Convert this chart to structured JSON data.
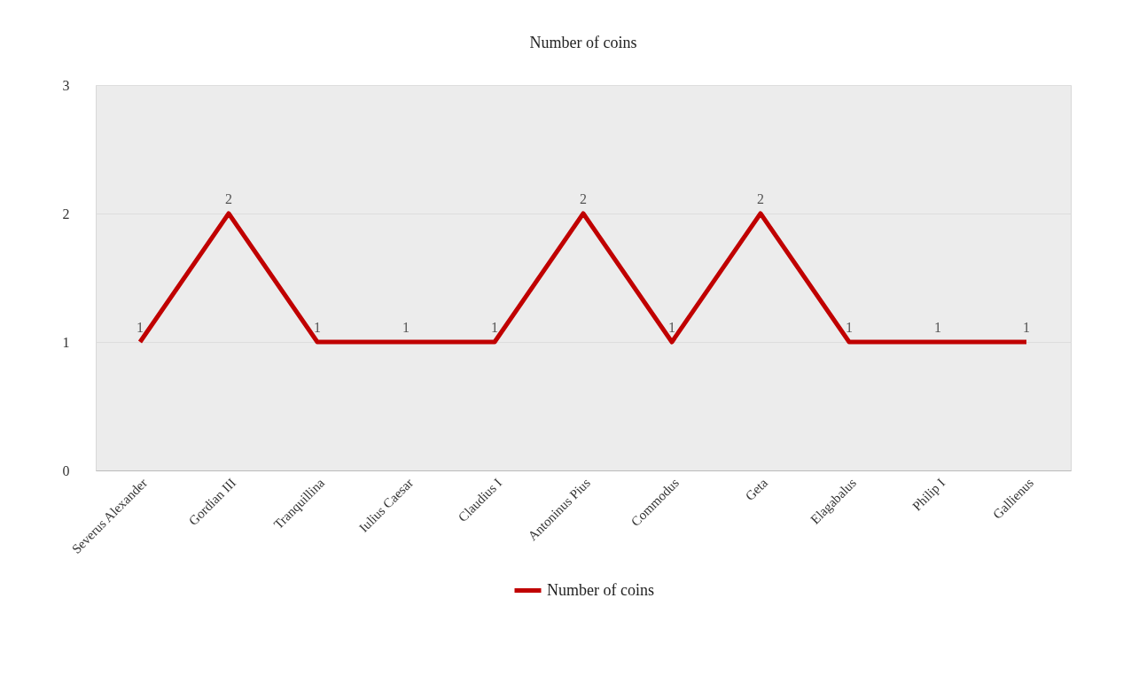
{
  "chart_data": {
    "type": "line",
    "title": "Number of coins",
    "categories": [
      "Severus Alexander",
      "Gordian III",
      "Tranquillina",
      "Iulius Caesar",
      "Claudius I",
      "Antoninus Pius",
      "Commodus",
      "Geta",
      "Elagabalus",
      "Philip I",
      "Gallienus"
    ],
    "series": [
      {
        "name": "Number of coins",
        "color": "#c00000",
        "values": [
          1,
          2,
          1,
          1,
          1,
          2,
          1,
          2,
          1,
          1,
          1
        ]
      }
    ],
    "ylim": [
      0,
      3
    ],
    "yticks": [
      0,
      1,
      2,
      3
    ],
    "grid": "y",
    "legend": "bottom",
    "data_labels": true
  }
}
